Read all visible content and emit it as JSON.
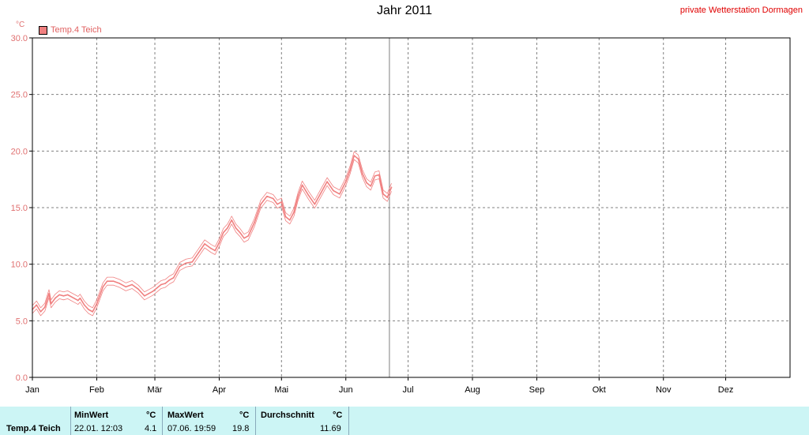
{
  "header": {
    "title": "Jahr 2011",
    "station": "private Wetterstation Dormagen",
    "unit": "°C"
  },
  "legend": {
    "label": "Temp.4 Teich",
    "color": "#f08080"
  },
  "chart_data": {
    "type": "line",
    "title": "Jahr 2011",
    "ylabel": "°C",
    "ylim": [
      0,
      30
    ],
    "yticks": [
      "0.0",
      "5.0",
      "10.0",
      "15.0",
      "20.0",
      "25.0",
      "30.0"
    ],
    "xlim": [
      0,
      365
    ],
    "xticks": [
      "Jan",
      "Feb",
      "Mär",
      "Apr",
      "Mai",
      "Jun",
      "Jul",
      "Aug",
      "Sep",
      "Okt",
      "Nov",
      "Dez"
    ],
    "month_starts": [
      0,
      31,
      59,
      90,
      120,
      151,
      181,
      212,
      243,
      273,
      304,
      334
    ],
    "grid": true,
    "current_marker_day": 172,
    "series": [
      {
        "name": "Temp.4 Teich",
        "color": "#f08080",
        "x": [
          0,
          2,
          4,
          6,
          8,
          9,
          11,
          13,
          15,
          17,
          20,
          22,
          23,
          25,
          27,
          29,
          31,
          34,
          36,
          39,
          42,
          45,
          48,
          51,
          54,
          56,
          58,
          60,
          62,
          64,
          66,
          68,
          71,
          74,
          77,
          80,
          83,
          86,
          88,
          90,
          92,
          94,
          96,
          98,
          100,
          102,
          104,
          107,
          110,
          113,
          116,
          118,
          120,
          122,
          124,
          126,
          128,
          130,
          133,
          136,
          139,
          142,
          145,
          148,
          151,
          153,
          155,
          157,
          159,
          161,
          163,
          165,
          167,
          169,
          171,
          173
        ],
        "values": [
          6.0,
          6.4,
          5.8,
          6.2,
          7.4,
          6.5,
          7.0,
          7.3,
          7.2,
          7.3,
          7.0,
          6.8,
          7.0,
          6.4,
          6.0,
          5.8,
          6.5,
          8.0,
          8.5,
          8.5,
          8.3,
          8.0,
          8.2,
          7.8,
          7.2,
          7.4,
          7.6,
          7.9,
          8.2,
          8.3,
          8.6,
          8.8,
          9.8,
          10.1,
          10.2,
          11.0,
          11.8,
          11.4,
          11.2,
          11.9,
          12.8,
          13.2,
          13.9,
          13.2,
          12.8,
          12.3,
          12.5,
          13.7,
          15.3,
          16.0,
          15.8,
          15.3,
          15.5,
          14.2,
          13.9,
          14.6,
          16.0,
          17.0,
          16.1,
          15.3,
          16.3,
          17.3,
          16.5,
          16.2,
          17.3,
          18.3,
          19.6,
          19.3,
          18.0,
          17.2,
          16.9,
          17.8,
          17.9,
          16.2,
          15.9,
          16.8
        ]
      }
    ]
  },
  "footer": {
    "row_label": "Temp.4 Teich",
    "min_header": "MinWert",
    "min_unit": "°C",
    "min_time": "22.01.  12:03",
    "min_value": "4.1",
    "max_header": "MaxWert",
    "max_unit": "°C",
    "max_time": "07.06.  19:59",
    "max_value": "19.8",
    "avg_header": "Durchschnitt",
    "avg_unit": "°C",
    "avg_value": "11.69"
  }
}
